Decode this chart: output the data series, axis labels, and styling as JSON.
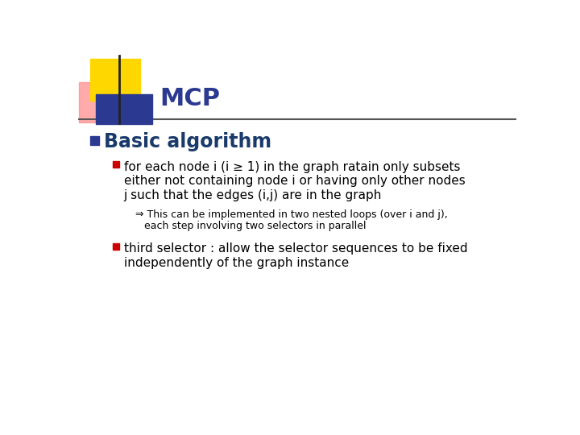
{
  "title": "MCP",
  "title_color": "#2B3990",
  "title_fontsize": 22,
  "background_color": "#FFFFFF",
  "header_line_color": "#555555",
  "bullet1_text": "Basic algorithm",
  "bullet1_color": "#1a3a6b",
  "bullet1_fontsize": 17,
  "bullet1_marker_color": "#2B3990",
  "sub_bullet1_line1": "for each node i (i ≥ 1) in the graph ratain only subsets",
  "sub_bullet1_line2": "either not containing node i or having only other nodes",
  "sub_bullet1_line3": "j such that the edges (i,j) are in the graph",
  "sub_bullet1_color": "#000000",
  "sub_bullet1_fontsize": 11,
  "sub_bullet1_marker_color": "#CC0000",
  "arrow_text_line1": "⇒ This can be implemented in two nested loops (over i and j),",
  "arrow_text_line2": "each step involving two selectors in parallel",
  "arrow_text_fontsize": 9,
  "arrow_text_color": "#000000",
  "sub_bullet2_line1": "third selector : allow the selector sequences to be fixed",
  "sub_bullet2_line2": "independently of the graph instance",
  "sub_bullet2_fontsize": 11,
  "sub_bullet2_color": "#000000",
  "sub_bullet2_marker_color": "#CC0000",
  "deco_yellow": "#FFD700",
  "deco_blue": "#2B3990",
  "deco_pink": "#FF8888"
}
